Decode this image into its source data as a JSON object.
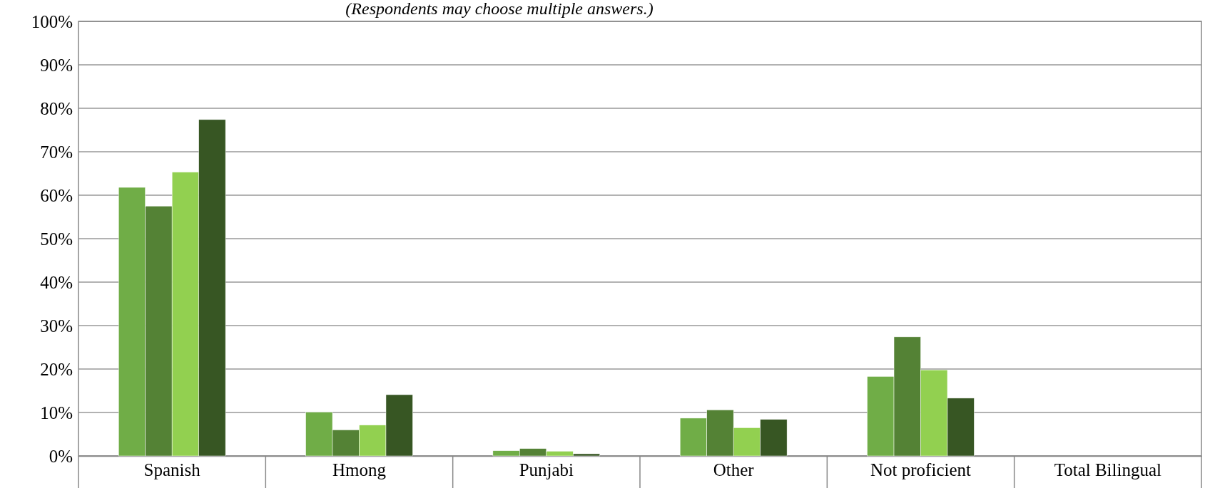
{
  "chart_data": {
    "type": "bar",
    "subtitle": "(Respondents may choose multiple answers.)",
    "categories": [
      "Spanish",
      "Hmong",
      "Punjabi",
      "Other",
      "Not proficient",
      "Total Bilingual"
    ],
    "series": [
      {
        "color": "#70ad47",
        "values": [
          61.8,
          10.1,
          1.2,
          8.7,
          18.3,
          null
        ]
      },
      {
        "color": "#548235",
        "values": [
          57.5,
          6.0,
          1.7,
          10.6,
          27.4,
          null
        ]
      },
      {
        "color": "#92d050",
        "values": [
          65.3,
          7.1,
          1.1,
          6.5,
          19.8,
          null
        ]
      },
      {
        "color": "#375623",
        "values": [
          77.4,
          14.1,
          0.5,
          8.4,
          13.3,
          null
        ]
      }
    ],
    "ylim": [
      0,
      100
    ],
    "yticks": [
      {
        "value": 0,
        "label": "0%"
      },
      {
        "value": 10,
        "label": "10%"
      },
      {
        "value": 20,
        "label": "20%"
      },
      {
        "value": 30,
        "label": "30%"
      },
      {
        "value": 40,
        "label": "40%"
      },
      {
        "value": 50,
        "label": "50%"
      },
      {
        "value": 60,
        "label": "60%"
      },
      {
        "value": 70,
        "label": "70%"
      },
      {
        "value": 80,
        "label": "80%"
      },
      {
        "value": 90,
        "label": "90%"
      },
      {
        "value": 100,
        "label": "100%"
      }
    ],
    "grid": "y",
    "legend": false
  }
}
